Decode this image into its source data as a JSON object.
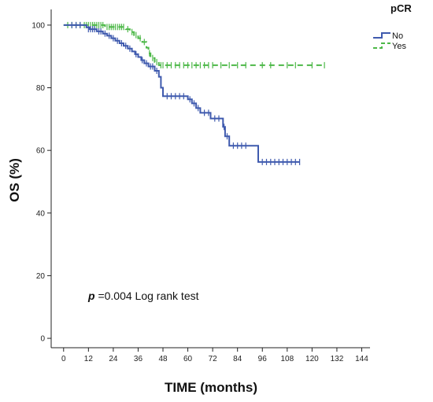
{
  "chart_data": {
    "type": "line",
    "subtype": "kaplan-meier",
    "xlabel": "TIME (months)",
    "ylabel": "OS (%)",
    "xlim": [
      -6,
      148
    ],
    "ylim": [
      -3,
      105
    ],
    "x_ticks": [
      0,
      12,
      24,
      36,
      48,
      60,
      72,
      84,
      96,
      108,
      120,
      132,
      144
    ],
    "y_ticks": [
      0,
      20,
      40,
      60,
      80,
      100
    ],
    "grid": false,
    "legend": {
      "title": "pCR",
      "position": "top-right"
    },
    "annotation": {
      "p_symbol": "p",
      "text": " =0.004 Log rank test"
    },
    "colors": {
      "No": "#3F5AAE",
      "Yes": "#4DB848"
    },
    "series": [
      {
        "name": "No",
        "line_style": "solid",
        "steps": [
          [
            0,
            100
          ],
          [
            11,
            99.3
          ],
          [
            12.5,
            98.7
          ],
          [
            16,
            98
          ],
          [
            19,
            97.3
          ],
          [
            21,
            96.6
          ],
          [
            23,
            95.8
          ],
          [
            25,
            95
          ],
          [
            27,
            94.2
          ],
          [
            29,
            93.4
          ],
          [
            31,
            92.5
          ],
          [
            33,
            91.6
          ],
          [
            34.5,
            90.7
          ],
          [
            36,
            89.8
          ],
          [
            37.5,
            88.8
          ],
          [
            39,
            87.8
          ],
          [
            41,
            86.8
          ],
          [
            44,
            85.4
          ],
          [
            46,
            83.5
          ],
          [
            47,
            80
          ],
          [
            48,
            77.3
          ],
          [
            60,
            76.3
          ],
          [
            62,
            75
          ],
          [
            64,
            73.5
          ],
          [
            66,
            72
          ],
          [
            71,
            70.2
          ],
          [
            77,
            67.5
          ],
          [
            78,
            64.5
          ],
          [
            80,
            61.5
          ],
          [
            94,
            56.3
          ],
          [
            114,
            56.3
          ]
        ],
        "censors": [
          [
            4,
            100
          ],
          [
            6,
            100
          ],
          [
            8,
            100
          ],
          [
            12,
            98.7
          ],
          [
            13,
            98.7
          ],
          [
            14,
            98.7
          ],
          [
            15,
            98.7
          ],
          [
            17,
            98
          ],
          [
            18,
            98
          ],
          [
            20,
            97.3
          ],
          [
            22,
            96.6
          ],
          [
            24,
            95.8
          ],
          [
            26,
            95
          ],
          [
            28,
            94.2
          ],
          [
            30,
            93.4
          ],
          [
            32,
            92.5
          ],
          [
            35,
            90.7
          ],
          [
            38,
            88.8
          ],
          [
            40,
            87.8
          ],
          [
            42,
            86.8
          ],
          [
            43,
            86.8
          ],
          [
            45,
            85.4
          ],
          [
            50,
            77.3
          ],
          [
            52,
            77.3
          ],
          [
            54,
            77.3
          ],
          [
            56,
            77.3
          ],
          [
            58,
            77.3
          ],
          [
            61,
            76.3
          ],
          [
            63,
            75
          ],
          [
            65,
            73.5
          ],
          [
            68,
            72
          ],
          [
            70,
            72
          ],
          [
            73,
            70.2
          ],
          [
            75,
            70.2
          ],
          [
            77.5,
            67.5
          ],
          [
            79,
            64.5
          ],
          [
            82,
            61.5
          ],
          [
            84,
            61.5
          ],
          [
            86,
            61.5
          ],
          [
            88,
            61.5
          ],
          [
            96,
            56.3
          ],
          [
            98,
            56.3
          ],
          [
            100,
            56.3
          ],
          [
            102,
            56.3
          ],
          [
            104,
            56.3
          ],
          [
            106,
            56.3
          ],
          [
            108,
            56.3
          ],
          [
            110,
            56.3
          ],
          [
            112,
            56.3
          ],
          [
            114,
            56.3
          ]
        ]
      },
      {
        "name": "Yes",
        "line_style": "dashed",
        "steps": [
          [
            0,
            100
          ],
          [
            20,
            99.4
          ],
          [
            30,
            98.7
          ],
          [
            32,
            97.8
          ],
          [
            34,
            96.8
          ],
          [
            36,
            95.8
          ],
          [
            38,
            94.6
          ],
          [
            40,
            92.8
          ],
          [
            41,
            91
          ],
          [
            42,
            89.5
          ],
          [
            44,
            88.2
          ],
          [
            46,
            87.2
          ],
          [
            126,
            87.2
          ]
        ],
        "censors": [
          [
            2,
            100
          ],
          [
            4,
            100
          ],
          [
            6,
            100
          ],
          [
            8,
            100
          ],
          [
            10,
            100
          ],
          [
            11,
            100
          ],
          [
            12,
            100
          ],
          [
            13,
            100
          ],
          [
            14,
            100
          ],
          [
            15,
            100
          ],
          [
            16,
            100
          ],
          [
            17,
            100
          ],
          [
            18,
            100
          ],
          [
            19,
            100
          ],
          [
            21,
            99.4
          ],
          [
            22,
            99.4
          ],
          [
            23,
            99.4
          ],
          [
            24,
            99.4
          ],
          [
            25,
            99.4
          ],
          [
            26,
            99.4
          ],
          [
            27,
            99.4
          ],
          [
            28,
            99.4
          ],
          [
            29,
            99.4
          ],
          [
            31,
            98.7
          ],
          [
            33,
            97.8
          ],
          [
            35,
            96.8
          ],
          [
            37,
            95.8
          ],
          [
            39,
            94.6
          ],
          [
            41.5,
            91
          ],
          [
            43,
            89.5
          ],
          [
            45,
            88.2
          ],
          [
            47,
            87.2
          ],
          [
            48,
            87.2
          ],
          [
            50,
            87.2
          ],
          [
            52,
            87.2
          ],
          [
            54,
            87.2
          ],
          [
            56,
            87.2
          ],
          [
            58,
            87.2
          ],
          [
            60,
            87.2
          ],
          [
            62,
            87.2
          ],
          [
            64,
            87.2
          ],
          [
            66,
            87.2
          ],
          [
            68,
            87.2
          ],
          [
            70,
            87.2
          ],
          [
            72,
            87.2
          ],
          [
            76,
            87.2
          ],
          [
            80,
            87.2
          ],
          [
            84,
            87.2
          ],
          [
            88,
            87.2
          ],
          [
            96,
            87.2
          ],
          [
            100,
            87.2
          ],
          [
            108,
            87.2
          ],
          [
            112,
            87.2
          ],
          [
            120,
            87.2
          ],
          [
            126,
            87.2
          ]
        ]
      }
    ]
  }
}
